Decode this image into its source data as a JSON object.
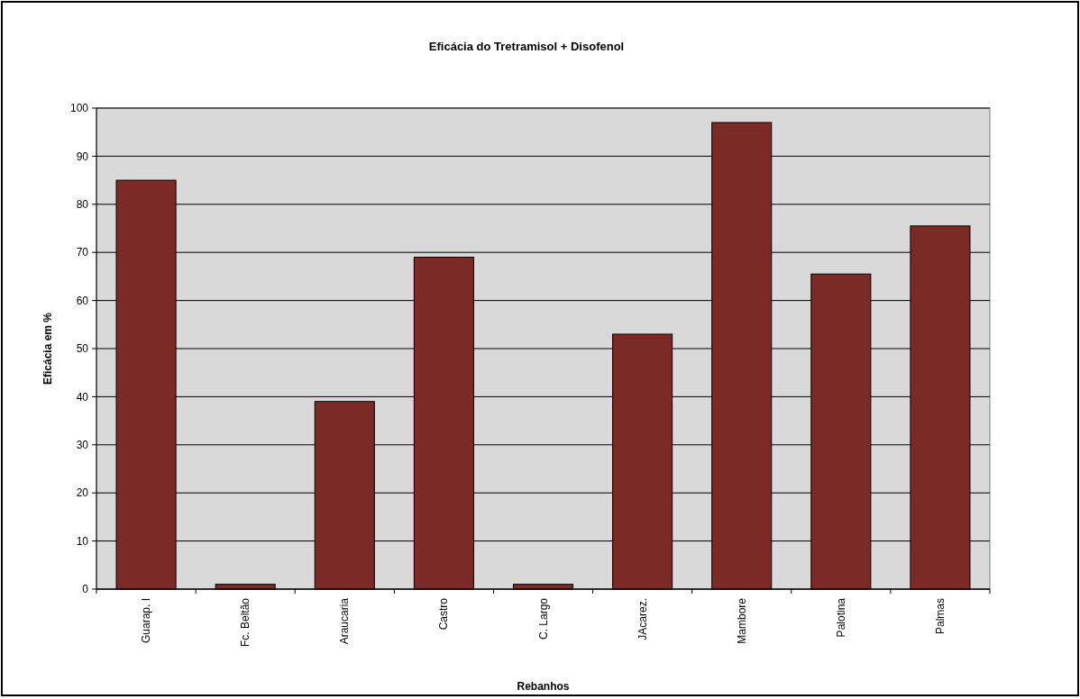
{
  "chart_data": {
    "type": "bar",
    "title": "Eficácia do Tretramisol + Disofenol",
    "xlabel": "Rebanhos",
    "ylabel": "Eficácia em %",
    "categories": [
      "Guarap. I",
      "Fc. Beltão",
      "Araucaria",
      "Castro",
      "C. Largo",
      "JAcarez.",
      "Mambore",
      "Palotina",
      "Palmas"
    ],
    "values": [
      85,
      1,
      39,
      69,
      1,
      53,
      97,
      65.5,
      75.5
    ],
    "color": "#7b2a26",
    "ylim": [
      0,
      100
    ],
    "yticks": [
      0,
      10,
      20,
      30,
      40,
      50,
      60,
      70,
      80,
      90,
      100
    ],
    "grid": "y"
  }
}
